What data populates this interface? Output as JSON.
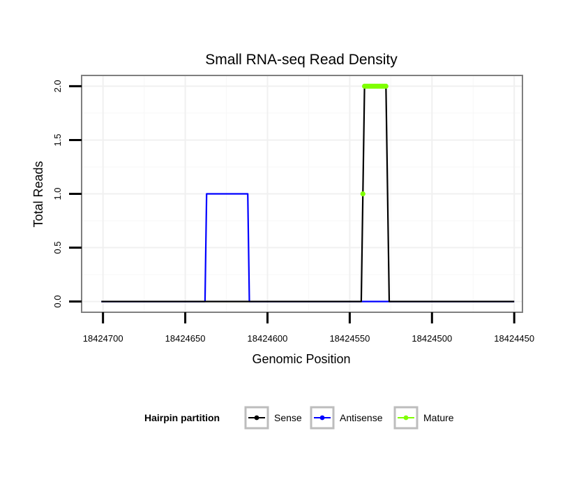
{
  "chart_data": {
    "type": "line",
    "title": "Small RNA-seq Read Density",
    "xlabel": "Genomic Position",
    "ylabel": "Total Reads",
    "x_reversed": true,
    "xlim": [
      18424713,
      18424445
    ],
    "ylim": [
      -0.1,
      2.1
    ],
    "x_ticks": [
      18424700,
      18424650,
      18424600,
      18424550,
      18424500,
      18424450
    ],
    "x_tick_labels": [
      "18424700",
      "18424650",
      "18424600",
      "18424550",
      "18424500",
      "18424450"
    ],
    "y_ticks": [
      0.0,
      0.5,
      1.0,
      1.5,
      2.0
    ],
    "y_tick_labels": [
      "0.0",
      "0.5",
      "1.0",
      "1.5",
      "2.0"
    ],
    "grid": true,
    "legend": {
      "title": "Hairpin partition",
      "placement": "bottom",
      "entries": [
        "Sense",
        "Antisense",
        "Mature"
      ]
    },
    "series": [
      {
        "name": "Sense",
        "color": "#000000",
        "x": [
          18424701,
          18424543,
          18424541,
          18424528,
          18424526,
          18424450
        ],
        "values": [
          0,
          0,
          2,
          2,
          0,
          0
        ]
      },
      {
        "name": "Antisense",
        "color": "#0000ff",
        "x": [
          18424701,
          18424638,
          18424637,
          18424612,
          18424611,
          18424450
        ],
        "values": [
          0,
          0,
          1,
          1,
          0,
          0
        ]
      },
      {
        "name": "Mature",
        "color": "#7fff00",
        "x": [
          18424542,
          18424541,
          18424540,
          18424539,
          18424538,
          18424537,
          18424536,
          18424535,
          18424534,
          18424533,
          18424532,
          18424531,
          18424530,
          18424529,
          18424528
        ],
        "values": [
          1,
          2,
          2,
          2,
          2,
          2,
          2,
          2,
          2,
          2,
          2,
          2,
          2,
          2,
          2
        ]
      }
    ]
  }
}
